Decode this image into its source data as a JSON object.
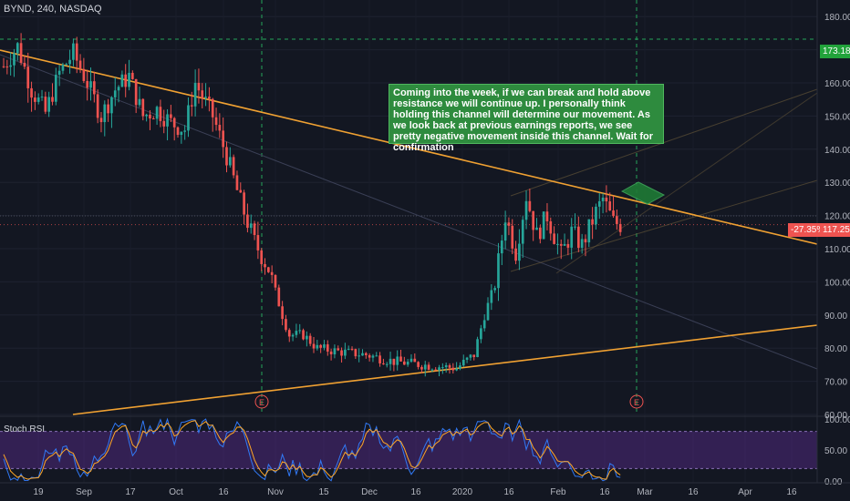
{
  "header": {
    "title": "BYND, 240, NASDAQ"
  },
  "annotation": {
    "text": "Coming into the week, if we can break and hold above resistance we will continue up. I personally think holding this channel will determine our movement. As we look back at previous earnings reports, we see pretty negative movement inside this channel. Wait for confirmation"
  },
  "price_tags": {
    "resistance": "173.18",
    "change_pct": "-27.35%",
    "last": "117.25"
  },
  "earnings_markers": [
    "E",
    "E"
  ],
  "oscillator": {
    "title": "Stoch RSI",
    "ticks": [
      "100.00",
      "50.00",
      "0.00"
    ]
  },
  "colors": {
    "background": "#131722",
    "up": "#26a69a",
    "down": "#ef5350",
    "trendline": "#f0a132",
    "stoch_k": "#3179f5",
    "stoch_d": "#ffa726",
    "osc_band": "#5c2d91"
  },
  "chart_data": {
    "type": "candlestick",
    "title": "BYND, 240, NASDAQ",
    "x_tick_labels": [
      "19",
      "Sep",
      "17",
      "Oct",
      "16",
      "Nov",
      "15",
      "Dec",
      "16",
      "2020",
      "16",
      "Feb",
      "16",
      "Mar",
      "16",
      "Apr",
      "16"
    ],
    "y_ticks": [
      180,
      170,
      160,
      150,
      140,
      130,
      120,
      110,
      100,
      90,
      80,
      70,
      60
    ],
    "ylim": [
      60,
      185
    ],
    "price_path": [
      [
        0,
        165
      ],
      [
        4,
        171
      ],
      [
        8,
        158
      ],
      [
        12,
        151
      ],
      [
        16,
        163
      ],
      [
        20,
        169
      ],
      [
        24,
        160
      ],
      [
        28,
        150
      ],
      [
        32,
        158
      ],
      [
        36,
        162
      ],
      [
        40,
        150
      ],
      [
        44,
        152
      ],
      [
        48,
        148
      ],
      [
        52,
        146
      ],
      [
        55,
        160
      ],
      [
        60,
        150
      ],
      [
        64,
        138
      ],
      [
        68,
        124
      ],
      [
        72,
        112
      ],
      [
        76,
        104
      ],
      [
        80,
        90
      ],
      [
        82,
        84
      ],
      [
        86,
        84
      ],
      [
        90,
        80
      ],
      [
        96,
        79
      ],
      [
        104,
        78
      ],
      [
        112,
        76
      ],
      [
        120,
        75
      ],
      [
        130,
        74
      ],
      [
        135,
        78
      ],
      [
        138,
        90
      ],
      [
        141,
        99
      ],
      [
        144,
        120
      ],
      [
        147,
        109
      ],
      [
        150,
        126
      ],
      [
        153,
        114
      ],
      [
        156,
        120
      ],
      [
        160,
        108
      ],
      [
        163,
        115
      ],
      [
        166,
        111
      ],
      [
        170,
        121
      ],
      [
        172,
        125
      ],
      [
        175,
        118
      ],
      [
        177,
        117.25
      ]
    ],
    "last_price": 117.25,
    "resistance_level": 173.18,
    "candle_count": 178,
    "oscillator": {
      "name": "Stoch RSI",
      "ylim": [
        0,
        100
      ],
      "ticks": [
        100,
        50,
        0
      ],
      "band": [
        20,
        80
      ]
    }
  }
}
